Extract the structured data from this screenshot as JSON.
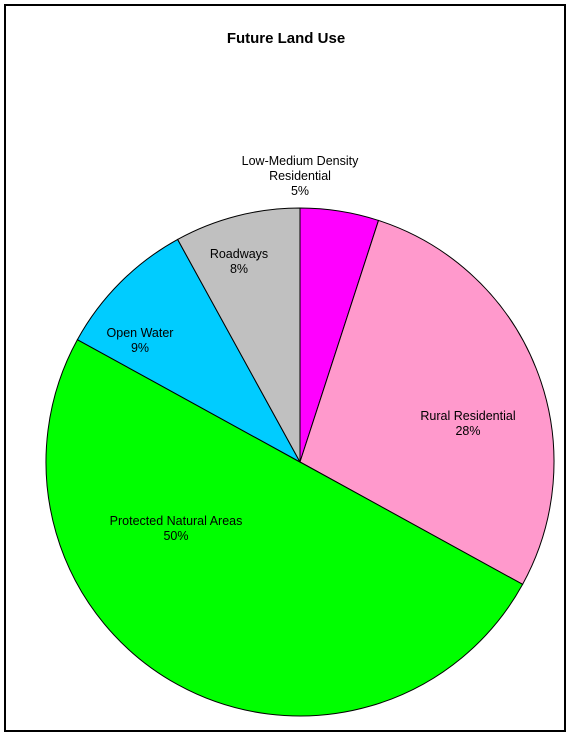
{
  "chart_data": {
    "type": "pie",
    "title": "Future Land Use",
    "start_angle_deg": 0,
    "direction": "clockwise",
    "slices": [
      {
        "label": "Low-Medium Density Residential",
        "label_lines": [
          "Low-Medium Density",
          "Residential"
        ],
        "value": 5,
        "value_label": "5%",
        "color": "#ff00ff"
      },
      {
        "label": "Rural Residential",
        "label_lines": [
          "Rural Residential"
        ],
        "value": 28,
        "value_label": "28%",
        "color": "#ff99cc"
      },
      {
        "label": "Protected Natural Areas",
        "label_lines": [
          "Protected Natural Areas"
        ],
        "value": 50,
        "value_label": "50%",
        "color": "#00ff00"
      },
      {
        "label": "Open Water",
        "label_lines": [
          "Open Water"
        ],
        "value": 9,
        "value_label": "9%",
        "color": "#00ccff"
      },
      {
        "label": "Roadways",
        "label_lines": [
          "Roadways"
        ],
        "value": 8,
        "value_label": "8%",
        "color": "#c0c0c0"
      }
    ]
  }
}
